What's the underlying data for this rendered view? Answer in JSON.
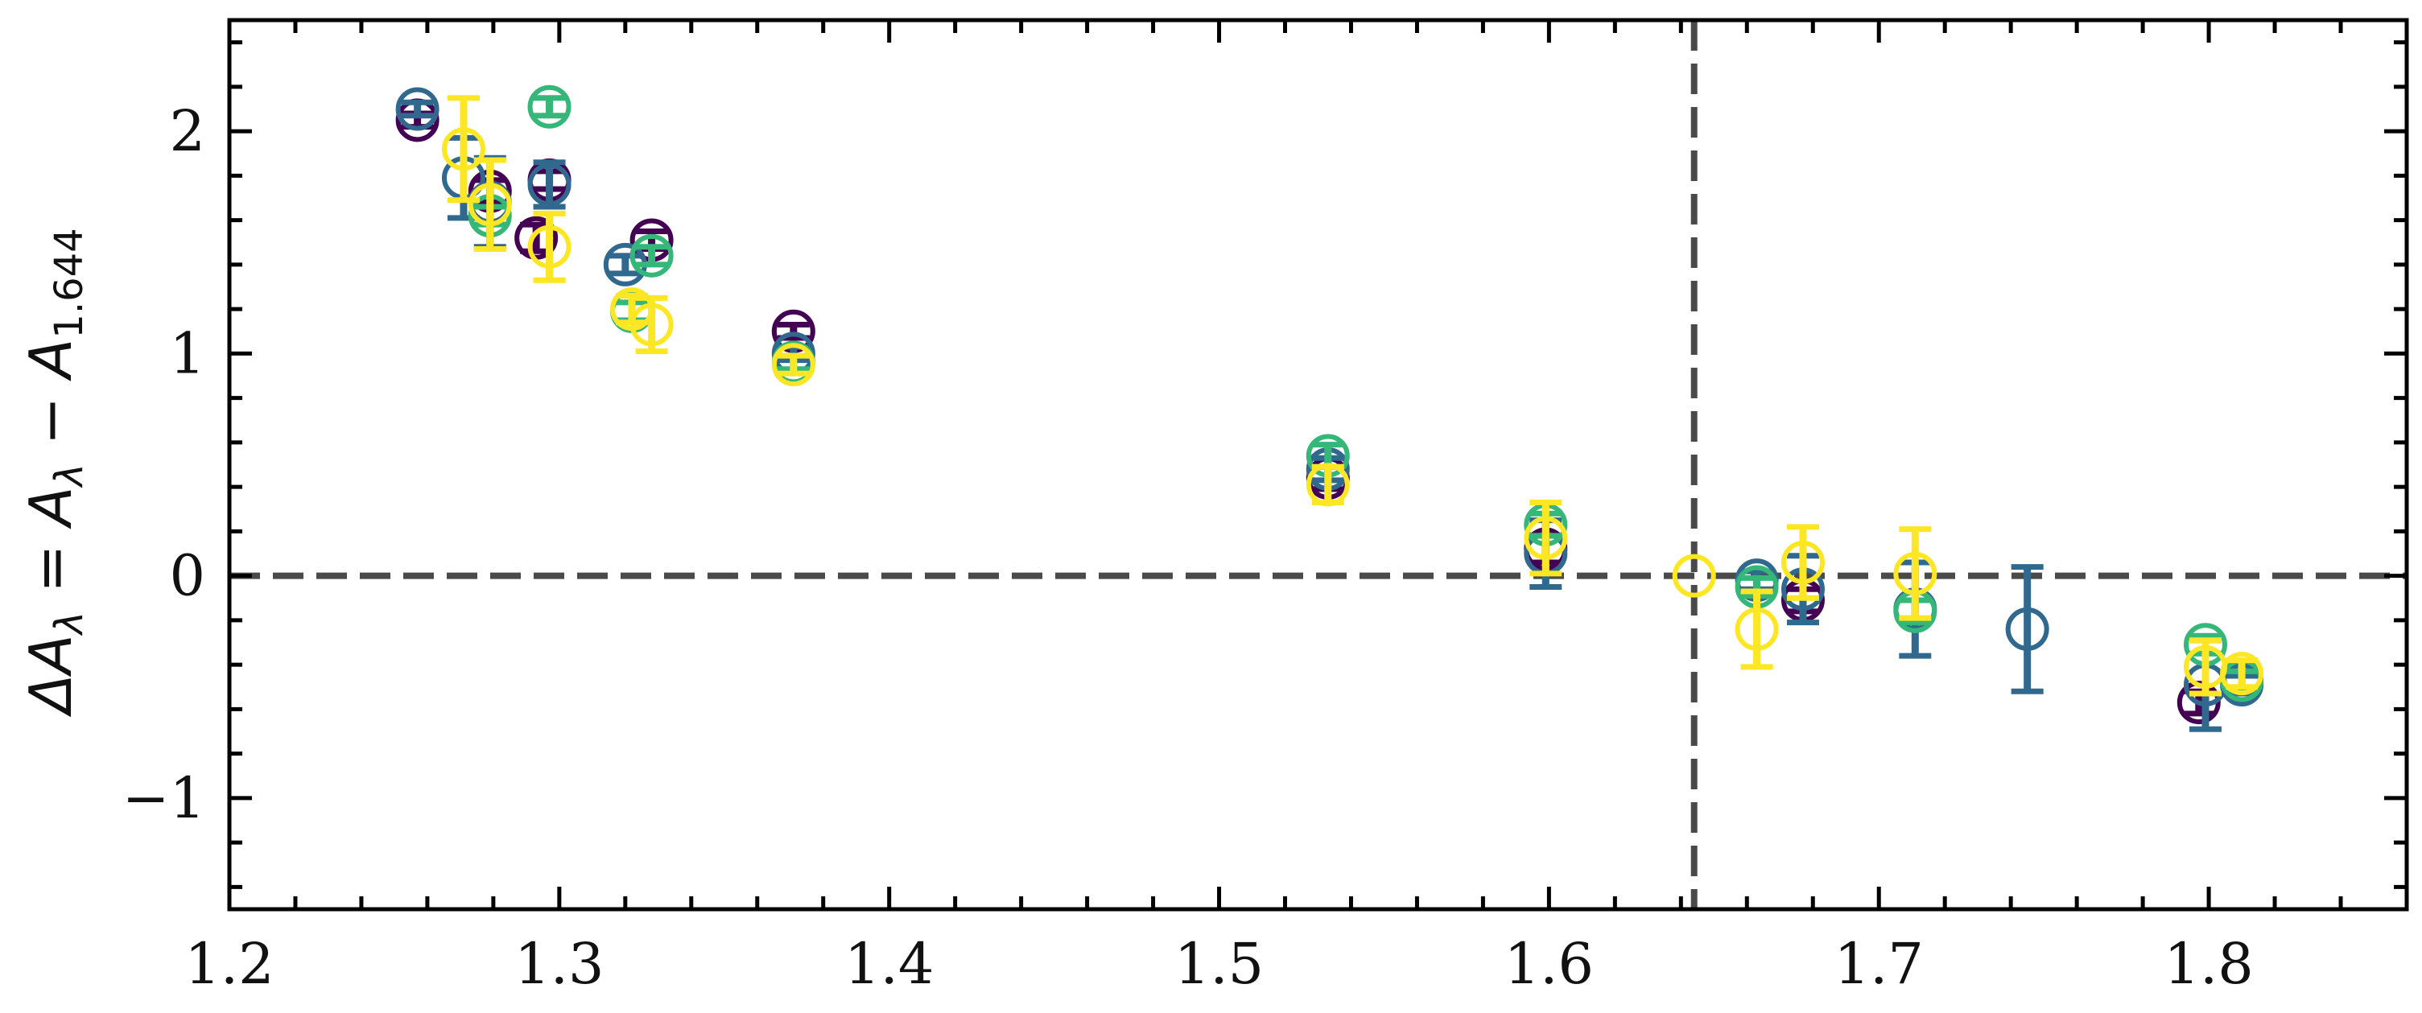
{
  "chart_data": {
    "type": "scatter",
    "title": "",
    "xlabel": "",
    "ylabel": {
      "prefix": "ΔA",
      "prefix_sub": "λ",
      "eq": " = A",
      "eq_sub": "λ",
      "minus": " − A",
      "ref_sub": "1.644"
    },
    "xlim": [
      1.2,
      1.86
    ],
    "ylim": [
      -1.5,
      2.5
    ],
    "x_ticks": [
      {
        "value": 1.2,
        "label": "1.2"
      },
      {
        "value": 1.3,
        "label": "1.3"
      },
      {
        "value": 1.4,
        "label": "1.4"
      },
      {
        "value": 1.5,
        "label": "1.5"
      },
      {
        "value": 1.6,
        "label": "1.6"
      },
      {
        "value": 1.7,
        "label": "1.7"
      },
      {
        "value": 1.8,
        "label": "1.8"
      }
    ],
    "y_ticks": [
      {
        "value": -1,
        "label": "−1"
      },
      {
        "value": 0,
        "label": "0"
      },
      {
        "value": 1,
        "label": "1"
      },
      {
        "value": 2,
        "label": "2"
      }
    ],
    "x_minor_step": 0.02,
    "y_minor_step": 0.2,
    "reference_lines": {
      "x": 1.644,
      "y": 0,
      "color": "#4a4a4a",
      "style": "dashed"
    },
    "grid": false,
    "marker": "open-circle",
    "series": [
      {
        "color": "#440154",
        "points": [
          {
            "x": 1.257,
            "y": 2.05,
            "err": 0.03
          },
          {
            "x": 1.279,
            "y": 1.73,
            "err": 0.05
          },
          {
            "x": 1.293,
            "y": 1.52,
            "err": 0.06
          },
          {
            "x": 1.297,
            "y": 1.78,
            "err": 0.04
          },
          {
            "x": 1.328,
            "y": 1.51,
            "err": 0.04
          },
          {
            "x": 1.371,
            "y": 1.1,
            "err": 0.03
          },
          {
            "x": 1.533,
            "y": 0.44,
            "err": 0.05
          },
          {
            "x": 1.599,
            "y": 0.12,
            "err": 0.06
          },
          {
            "x": 1.677,
            "y": -0.11,
            "err": 0.05
          },
          {
            "x": 1.797,
            "y": -0.57,
            "err": 0.05
          }
        ]
      },
      {
        "color": "#31688e",
        "points": [
          {
            "x": 1.257,
            "y": 2.1,
            "err": 0.03
          },
          {
            "x": 1.271,
            "y": 1.79,
            "err": 0.18
          },
          {
            "x": 1.279,
            "y": 1.68,
            "err": 0.2
          },
          {
            "x": 1.297,
            "y": 1.76,
            "err": 0.1
          },
          {
            "x": 1.32,
            "y": 1.4,
            "err": 0.04
          },
          {
            "x": 1.371,
            "y": 1.0,
            "err": 0.03
          },
          {
            "x": 1.533,
            "y": 0.48,
            "err": 0.05
          },
          {
            "x": 1.599,
            "y": 0.1,
            "err": 0.15
          },
          {
            "x": 1.663,
            "y": -0.02,
            "err": 0.04
          },
          {
            "x": 1.677,
            "y": -0.06,
            "err": 0.15
          },
          {
            "x": 1.711,
            "y": -0.15,
            "err": 0.21
          },
          {
            "x": 1.745,
            "y": -0.24,
            "err": 0.28
          },
          {
            "x": 1.799,
            "y": -0.49,
            "err": 0.2
          },
          {
            "x": 1.81,
            "y": -0.49,
            "err": 0.04
          }
        ]
      },
      {
        "color": "#35b779",
        "points": [
          {
            "x": 1.279,
            "y": 1.62,
            "err": 0.04
          },
          {
            "x": 1.297,
            "y": 2.11,
            "err": 0.04
          },
          {
            "x": 1.322,
            "y": 1.19,
            "err": 0.04
          },
          {
            "x": 1.328,
            "y": 1.44,
            "err": 0.04
          },
          {
            "x": 1.371,
            "y": 0.96,
            "err": 0.03
          },
          {
            "x": 1.533,
            "y": 0.54,
            "err": 0.05
          },
          {
            "x": 1.599,
            "y": 0.23,
            "err": 0.05
          },
          {
            "x": 1.663,
            "y": -0.05,
            "err": 0.04
          },
          {
            "x": 1.711,
            "y": -0.16,
            "err": 0.05
          },
          {
            "x": 1.799,
            "y": -0.31,
            "err": 0.04
          },
          {
            "x": 1.81,
            "y": -0.47,
            "err": 0.04
          }
        ]
      },
      {
        "color": "#fde725",
        "points": [
          {
            "x": 1.271,
            "y": 1.92,
            "err": 0.23
          },
          {
            "x": 1.279,
            "y": 1.67,
            "err": 0.2
          },
          {
            "x": 1.297,
            "y": 1.48,
            "err": 0.15
          },
          {
            "x": 1.322,
            "y": 1.2,
            "err": 0.06
          },
          {
            "x": 1.328,
            "y": 1.13,
            "err": 0.12
          },
          {
            "x": 1.371,
            "y": 0.95,
            "err": 0.04
          },
          {
            "x": 1.533,
            "y": 0.41,
            "err": 0.08
          },
          {
            "x": 1.599,
            "y": 0.17,
            "err": 0.16
          },
          {
            "x": 1.644,
            "y": 0.0,
            "err": 0
          },
          {
            "x": 1.663,
            "y": -0.24,
            "err": 0.17
          },
          {
            "x": 1.677,
            "y": 0.06,
            "err": 0.16
          },
          {
            "x": 1.711,
            "y": 0.01,
            "err": 0.2
          },
          {
            "x": 1.799,
            "y": -0.41,
            "err": 0.12
          },
          {
            "x": 1.81,
            "y": -0.44,
            "err": 0.06
          }
        ]
      }
    ]
  }
}
